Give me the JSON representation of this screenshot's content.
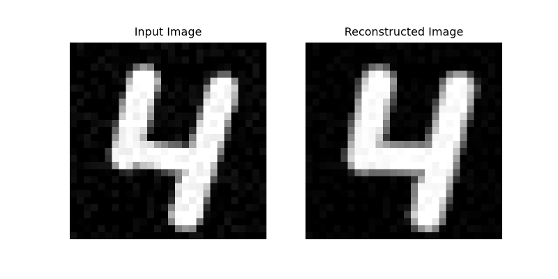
{
  "figure": {
    "panels": [
      {
        "title": "Input Image"
      },
      {
        "title": "Reconstructed Image"
      }
    ]
  }
}
